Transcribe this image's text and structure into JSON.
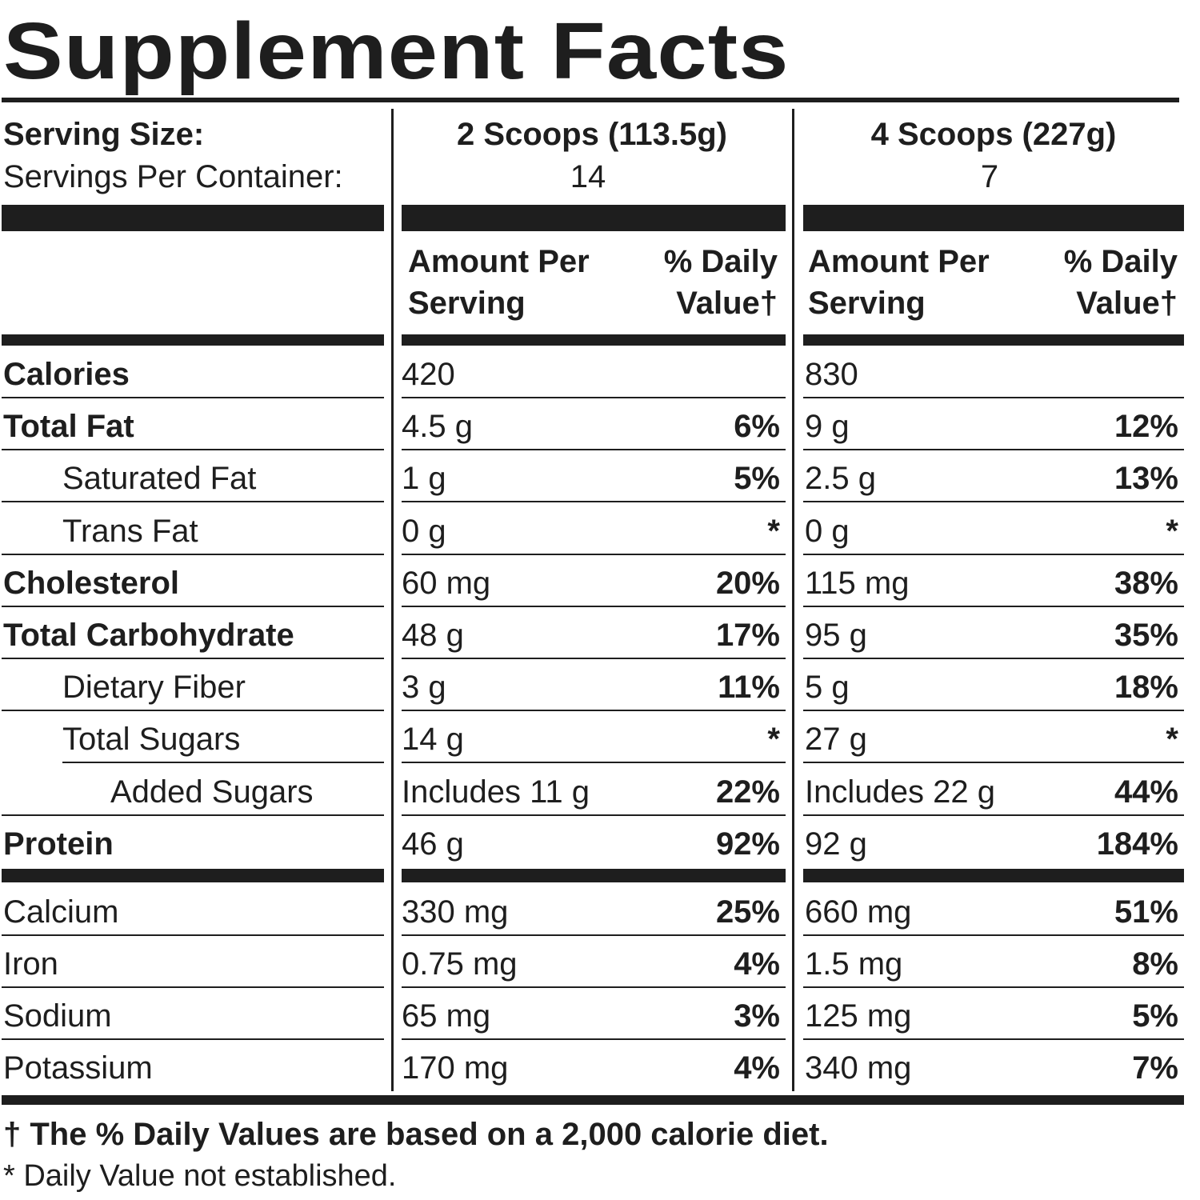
{
  "title": "Supplement Facts",
  "serving": {
    "size_label": "Serving Size:",
    "per_container_label": "Servings Per Container:",
    "columns": [
      {
        "serving_size": "2 Scoops (113.5g)",
        "servings_per_container": "14"
      },
      {
        "serving_size": "4 Scoops (227g)",
        "servings_per_container": "7"
      }
    ]
  },
  "headers": {
    "amount_line1": "Amount Per",
    "amount_line2": "Serving",
    "dv_line1": "% Daily",
    "dv_line2": "Value†"
  },
  "nutrients": [
    {
      "name": "Calories",
      "bold": true,
      "indent": 0,
      "c1_amount": "420",
      "c1_dv": "",
      "c2_amount": "830",
      "c2_dv": ""
    },
    {
      "name": "Total Fat",
      "bold": true,
      "indent": 0,
      "c1_amount": "4.5 g",
      "c1_dv": "6%",
      "c2_amount": "9 g",
      "c2_dv": "12%"
    },
    {
      "name": "Saturated Fat",
      "bold": false,
      "indent": 1,
      "c1_amount": "1 g",
      "c1_dv": "5%",
      "c2_amount": "2.5 g",
      "c2_dv": "13%"
    },
    {
      "name": "Trans Fat",
      "bold": false,
      "indent": 1,
      "c1_amount": "0 g",
      "c1_dv": "*",
      "c2_amount": "0 g",
      "c2_dv": "*"
    },
    {
      "name": "Cholesterol",
      "bold": true,
      "indent": 0,
      "c1_amount": "60 mg",
      "c1_dv": "20%",
      "c2_amount": "115 mg",
      "c2_dv": "38%"
    },
    {
      "name": "Total Carbohydrate",
      "bold": true,
      "indent": 0,
      "c1_amount": "48 g",
      "c1_dv": "17%",
      "c2_amount": "95 g",
      "c2_dv": "35%"
    },
    {
      "name": "Dietary Fiber",
      "bold": false,
      "indent": 1,
      "c1_amount": "3 g",
      "c1_dv": "11%",
      "c2_amount": "5 g",
      "c2_dv": "18%"
    },
    {
      "name": "Total Sugars",
      "bold": false,
      "indent": 1,
      "c1_amount": "14 g",
      "c1_dv": "*",
      "c2_amount": "27 g",
      "c2_dv": "*"
    },
    {
      "name": "Added Sugars",
      "bold": false,
      "indent": 2,
      "c1_amount": "Includes 11 g",
      "c1_dv": "22%",
      "c2_amount": "Includes 22 g",
      "c2_dv": "44%"
    },
    {
      "name": "Protein",
      "bold": true,
      "indent": 0,
      "c1_amount": "46 g",
      "c1_dv": "92%",
      "c2_amount": "92 g",
      "c2_dv": "184%"
    }
  ],
  "minerals": [
    {
      "name": "Calcium",
      "c1_amount": "330 mg",
      "c1_dv": "25%",
      "c2_amount": "660 mg",
      "c2_dv": "51%"
    },
    {
      "name": "Iron",
      "c1_amount": "0.75 mg",
      "c1_dv": "4%",
      "c2_amount": "1.5 mg",
      "c2_dv": "8%"
    },
    {
      "name": "Sodium",
      "c1_amount": "65 mg",
      "c1_dv": "3%",
      "c2_amount": "125 mg",
      "c2_dv": "5%"
    },
    {
      "name": "Potassium",
      "c1_amount": "170 mg",
      "c1_dv": "4%",
      "c2_amount": "340 mg",
      "c2_dv": "7%"
    }
  ],
  "footnotes": {
    "dagger": "† The % Daily Values are based on a 2,000 calorie diet.",
    "asterisk": "* Daily Value not established."
  }
}
